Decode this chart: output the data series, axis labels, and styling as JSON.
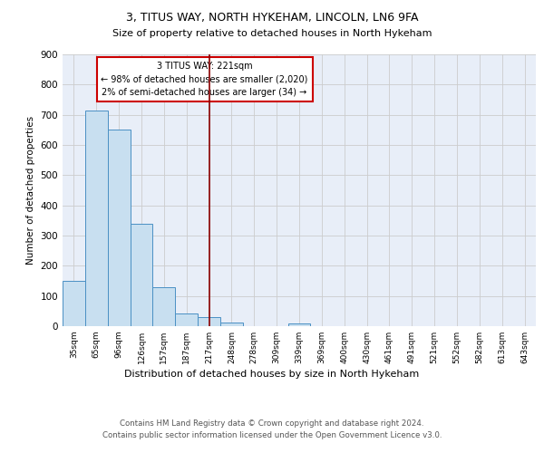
{
  "title1": "3, TITUS WAY, NORTH HYKEHAM, LINCOLN, LN6 9FA",
  "title2": "Size of property relative to detached houses in North Hykeham",
  "xlabel": "Distribution of detached houses by size in North Hykeham",
  "ylabel": "Number of detached properties",
  "footer1": "Contains HM Land Registry data © Crown copyright and database right 2024.",
  "footer2": "Contains public sector information licensed under the Open Government Licence v3.0.",
  "annotation_line1": "3 TITUS WAY: 221sqm",
  "annotation_line2": "← 98% of detached houses are smaller (2,020)",
  "annotation_line3": "2% of semi-detached houses are larger (34) →",
  "bar_color": "#c8dff0",
  "bar_edge_color": "#4a90c4",
  "marker_line_color": "#8b0000",
  "annotation_box_edge_color": "#cc0000",
  "background_color": "#e8eef8",
  "categories": [
    "35sqm",
    "65sqm",
    "96sqm",
    "126sqm",
    "157sqm",
    "187sqm",
    "217sqm",
    "248sqm",
    "278sqm",
    "309sqm",
    "339sqm",
    "369sqm",
    "400sqm",
    "430sqm",
    "461sqm",
    "491sqm",
    "521sqm",
    "552sqm",
    "582sqm",
    "613sqm",
    "643sqm"
  ],
  "values": [
    150,
    715,
    650,
    340,
    130,
    42,
    30,
    12,
    0,
    0,
    8,
    0,
    0,
    0,
    0,
    0,
    0,
    0,
    0,
    0,
    0
  ],
  "marker_category_index": 6,
  "ylim": [
    0,
    900
  ],
  "yticks": [
    0,
    100,
    200,
    300,
    400,
    500,
    600,
    700,
    800,
    900
  ]
}
